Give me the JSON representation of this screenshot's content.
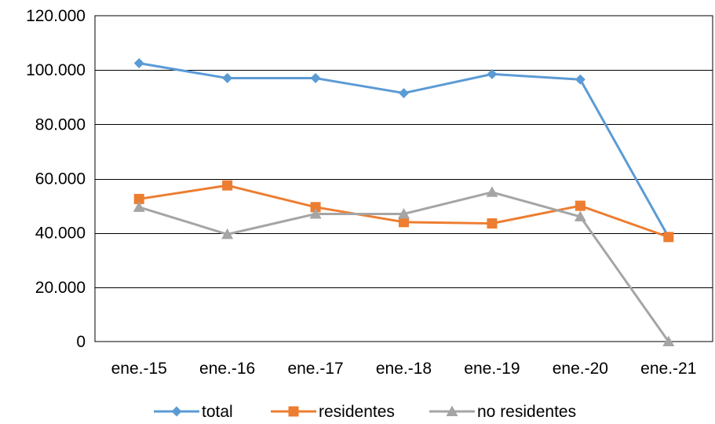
{
  "chart_data": {
    "type": "line",
    "title": "",
    "xlabel": "",
    "ylabel": "",
    "categories": [
      "ene.-15",
      "ene.-16",
      "ene.-17",
      "ene.-18",
      "ene.-19",
      "ene.-20",
      "ene.-21"
    ],
    "ylim": [
      0,
      120000
    ],
    "yticks": [
      0,
      20000,
      40000,
      60000,
      80000,
      100000,
      120000
    ],
    "ytick_labels": [
      "0",
      "20.000",
      "40.000",
      "60.000",
      "80.000",
      "100.000",
      "120.000"
    ],
    "grid": true,
    "legend_position": "bottom",
    "series": [
      {
        "name": "total",
        "color": "#5B9BD5",
        "marker": "diamond",
        "values": [
          102500,
          97000,
          97000,
          91500,
          98500,
          96500,
          38500
        ]
      },
      {
        "name": "residentes",
        "color": "#ED7D31",
        "marker": "square",
        "values": [
          52500,
          57500,
          49500,
          44000,
          43500,
          50000,
          38500
        ]
      },
      {
        "name": "no residentes",
        "color": "#A5A5A5",
        "marker": "triangle",
        "values": [
          49500,
          39500,
          47000,
          47000,
          55000,
          46000,
          0
        ]
      }
    ]
  }
}
